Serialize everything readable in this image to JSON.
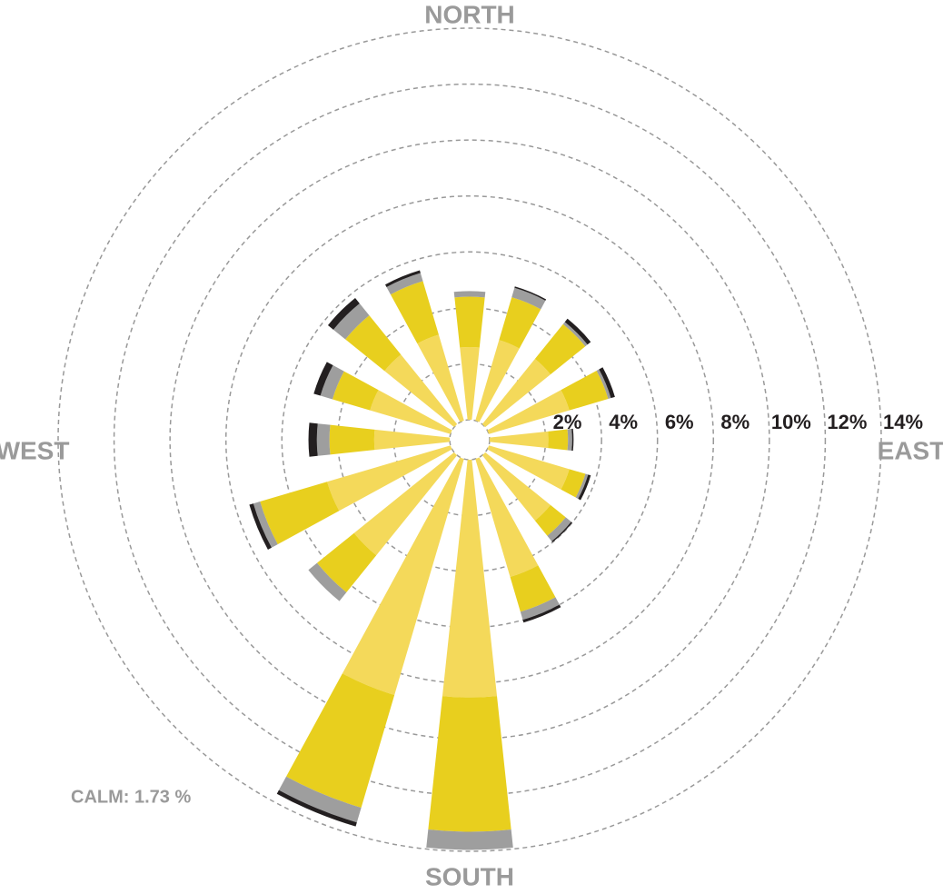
{
  "chart_data": {
    "type": "windrose",
    "direction_labels": {
      "north": "NORTH",
      "east": "EAST",
      "south": "SOUTH",
      "west": "WEST"
    },
    "calm_label": "CALM: 1.73 %",
    "rlim": [
      0,
      14
    ],
    "rticks": [
      {
        "value": 2,
        "label": "2%"
      },
      {
        "value": 4,
        "label": "4%"
      },
      {
        "value": 6,
        "label": "6%"
      },
      {
        "value": 8,
        "label": "8%"
      },
      {
        "value": 10,
        "label": "10%"
      },
      {
        "value": 12,
        "label": "12%"
      },
      {
        "value": 14,
        "label": "14%"
      }
    ],
    "grid": true,
    "series": [
      {
        "color": "#f4d95a",
        "values": [
          2.6,
          3.0,
          3.0,
          3.0,
          2.1,
          3.0,
          3.0,
          4.4,
          8.5,
          8.8,
          4.6,
          4.6,
          2.7,
          3.0,
          3.2,
          3.2
        ]
      },
      {
        "color": "#e8cf1e",
        "values": [
          1.8,
          1.6,
          1.6,
          1.45,
          0.7,
          0.6,
          0.7,
          1.3,
          4.8,
          4.2,
          1.7,
          2.5,
          1.6,
          1.4,
          1.8,
          2.0
        ]
      },
      {
        "color": "#9e9e9e",
        "values": [
          0.2,
          0.35,
          0.1,
          0.1,
          0.15,
          0.1,
          0.25,
          0.3,
          0.65,
          0.55,
          0.4,
          0.25,
          0.45,
          0.45,
          0.55,
          0.3
        ]
      },
      {
        "color": "#231f20",
        "values": [
          0,
          0.05,
          0.15,
          0.15,
          0.05,
          0.1,
          0.05,
          0.1,
          0,
          0.15,
          0,
          0.15,
          0.3,
          0.25,
          0.25,
          0.1
        ]
      }
    ]
  }
}
